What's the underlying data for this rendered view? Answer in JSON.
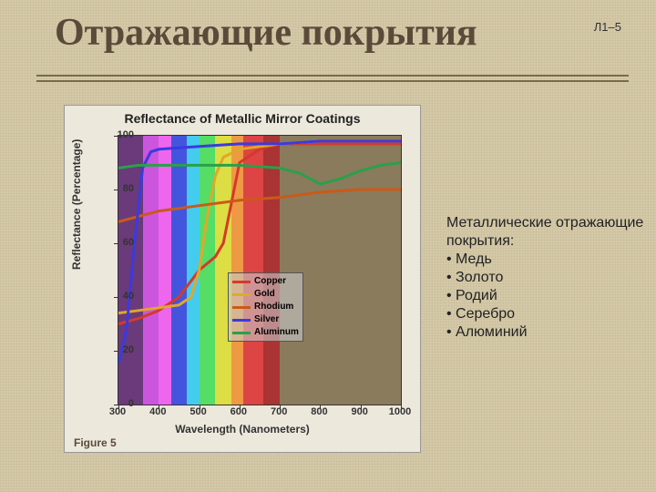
{
  "slide_label": "Л1–5",
  "title": "Отражающие покрытия",
  "side_text": {
    "intro": "Металлические отражающие покрытия:",
    "items": [
      "Медь",
      "Золото",
      "Родий",
      "Серебро",
      "Алюминий"
    ]
  },
  "chart": {
    "title": "Reflectance of Metallic Mirror Coatings",
    "xlabel": "Wavelength (Nanometers)",
    "ylabel": "Reflectance (Percentage)",
    "figure_label": "Figure 5",
    "xlim": [
      300,
      1000
    ],
    "ylim": [
      0,
      100
    ],
    "xticks": [
      300,
      400,
      500,
      600,
      700,
      800,
      900,
      1000
    ],
    "yticks": [
      0,
      20,
      40,
      60,
      80,
      100
    ],
    "plot_bg": "#8a7b5c",
    "line_width": 3,
    "spectrum_bands": [
      {
        "from": 300,
        "to": 360,
        "color": "#6a3a7a"
      },
      {
        "from": 360,
        "to": 400,
        "color": "#cc55dd"
      },
      {
        "from": 400,
        "to": 430,
        "color": "#ee66ee"
      },
      {
        "from": 430,
        "to": 470,
        "color": "#4455dd"
      },
      {
        "from": 470,
        "to": 500,
        "color": "#44ccee"
      },
      {
        "from": 500,
        "to": 540,
        "color": "#55dd66"
      },
      {
        "from": 540,
        "to": 580,
        "color": "#dddd44"
      },
      {
        "from": 580,
        "to": 610,
        "color": "#ee9944"
      },
      {
        "from": 610,
        "to": 660,
        "color": "#dd4444"
      },
      {
        "from": 660,
        "to": 700,
        "color": "#aa3333"
      },
      {
        "from": 700,
        "to": 1000,
        "color": "#8a7b5c"
      }
    ],
    "series": [
      {
        "name": "Copper",
        "color": "#d43a2a",
        "points": [
          [
            300,
            30
          ],
          [
            350,
            32
          ],
          [
            400,
            35
          ],
          [
            450,
            40
          ],
          [
            500,
            50
          ],
          [
            540,
            55
          ],
          [
            560,
            60
          ],
          [
            580,
            75
          ],
          [
            600,
            90
          ],
          [
            650,
            95
          ],
          [
            700,
            97
          ],
          [
            800,
            97
          ],
          [
            900,
            97
          ],
          [
            1000,
            97
          ]
        ]
      },
      {
        "name": "Gold",
        "color": "#e0a82a",
        "points": [
          [
            300,
            34
          ],
          [
            350,
            35
          ],
          [
            400,
            36
          ],
          [
            450,
            37
          ],
          [
            480,
            40
          ],
          [
            500,
            50
          ],
          [
            520,
            70
          ],
          [
            540,
            85
          ],
          [
            560,
            92
          ],
          [
            600,
            95
          ],
          [
            700,
            97
          ],
          [
            800,
            98
          ],
          [
            900,
            98
          ],
          [
            1000,
            98
          ]
        ]
      },
      {
        "name": "Rhodium",
        "color": "#c95a1a",
        "points": [
          [
            300,
            68
          ],
          [
            350,
            70
          ],
          [
            400,
            72
          ],
          [
            450,
            73
          ],
          [
            500,
            74
          ],
          [
            600,
            76
          ],
          [
            700,
            77
          ],
          [
            800,
            79
          ],
          [
            900,
            80
          ],
          [
            1000,
            80
          ]
        ]
      },
      {
        "name": "Silver",
        "color": "#3a3ae0",
        "points": [
          [
            300,
            15
          ],
          [
            320,
            28
          ],
          [
            340,
            60
          ],
          [
            360,
            88
          ],
          [
            380,
            94
          ],
          [
            400,
            95
          ],
          [
            500,
            96
          ],
          [
            600,
            97
          ],
          [
            700,
            97
          ],
          [
            800,
            98
          ],
          [
            900,
            98
          ],
          [
            1000,
            98
          ]
        ]
      },
      {
        "name": "Aluminum",
        "color": "#2aa04a",
        "points": [
          [
            300,
            88
          ],
          [
            350,
            89
          ],
          [
            400,
            89
          ],
          [
            500,
            89
          ],
          [
            600,
            89
          ],
          [
            700,
            88
          ],
          [
            750,
            86
          ],
          [
            800,
            82
          ],
          [
            850,
            84
          ],
          [
            900,
            87
          ],
          [
            950,
            89
          ],
          [
            1000,
            90
          ]
        ]
      }
    ]
  }
}
